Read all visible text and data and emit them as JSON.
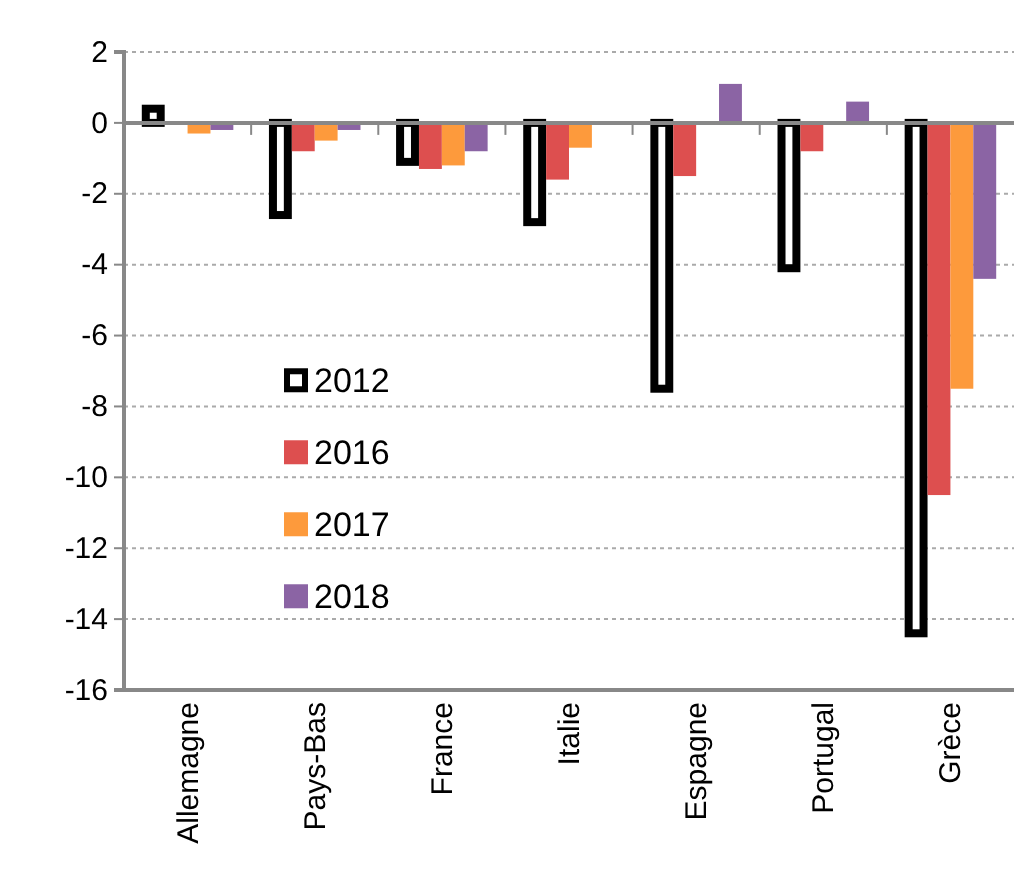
{
  "chart_data": {
    "type": "bar",
    "categories": [
      "Allemagne",
      "Pays-Bas",
      "France",
      "Italie",
      "Espagne",
      "Portugal",
      "Grèce"
    ],
    "series": [
      {
        "name": "2012",
        "color": "#ffffff",
        "values": [
          0.4,
          -2.6,
          -1.1,
          -2.8,
          -7.5,
          -4.1,
          -14.4
        ]
      },
      {
        "name": "2016",
        "color": "#dd4f4f",
        "values": [
          -0.05,
          -0.8,
          -1.3,
          -1.6,
          -1.5,
          -0.8,
          -10.5
        ]
      },
      {
        "name": "2017",
        "color": "#fd9a3c",
        "values": [
          -0.3,
          -0.5,
          -1.2,
          -0.7,
          null,
          null,
          -7.5
        ]
      },
      {
        "name": "2018",
        "color": "#8b64a4",
        "values": [
          -0.2,
          -0.2,
          -0.8,
          -0.05,
          1.1,
          0.6,
          -4.4
        ]
      }
    ],
    "ylim": [
      -16,
      2
    ],
    "yticks": [
      -16,
      -14,
      -12,
      -10,
      -8,
      -6,
      -4,
      -2,
      0,
      2
    ],
    "grid": "y",
    "legend": "bottom left"
  }
}
